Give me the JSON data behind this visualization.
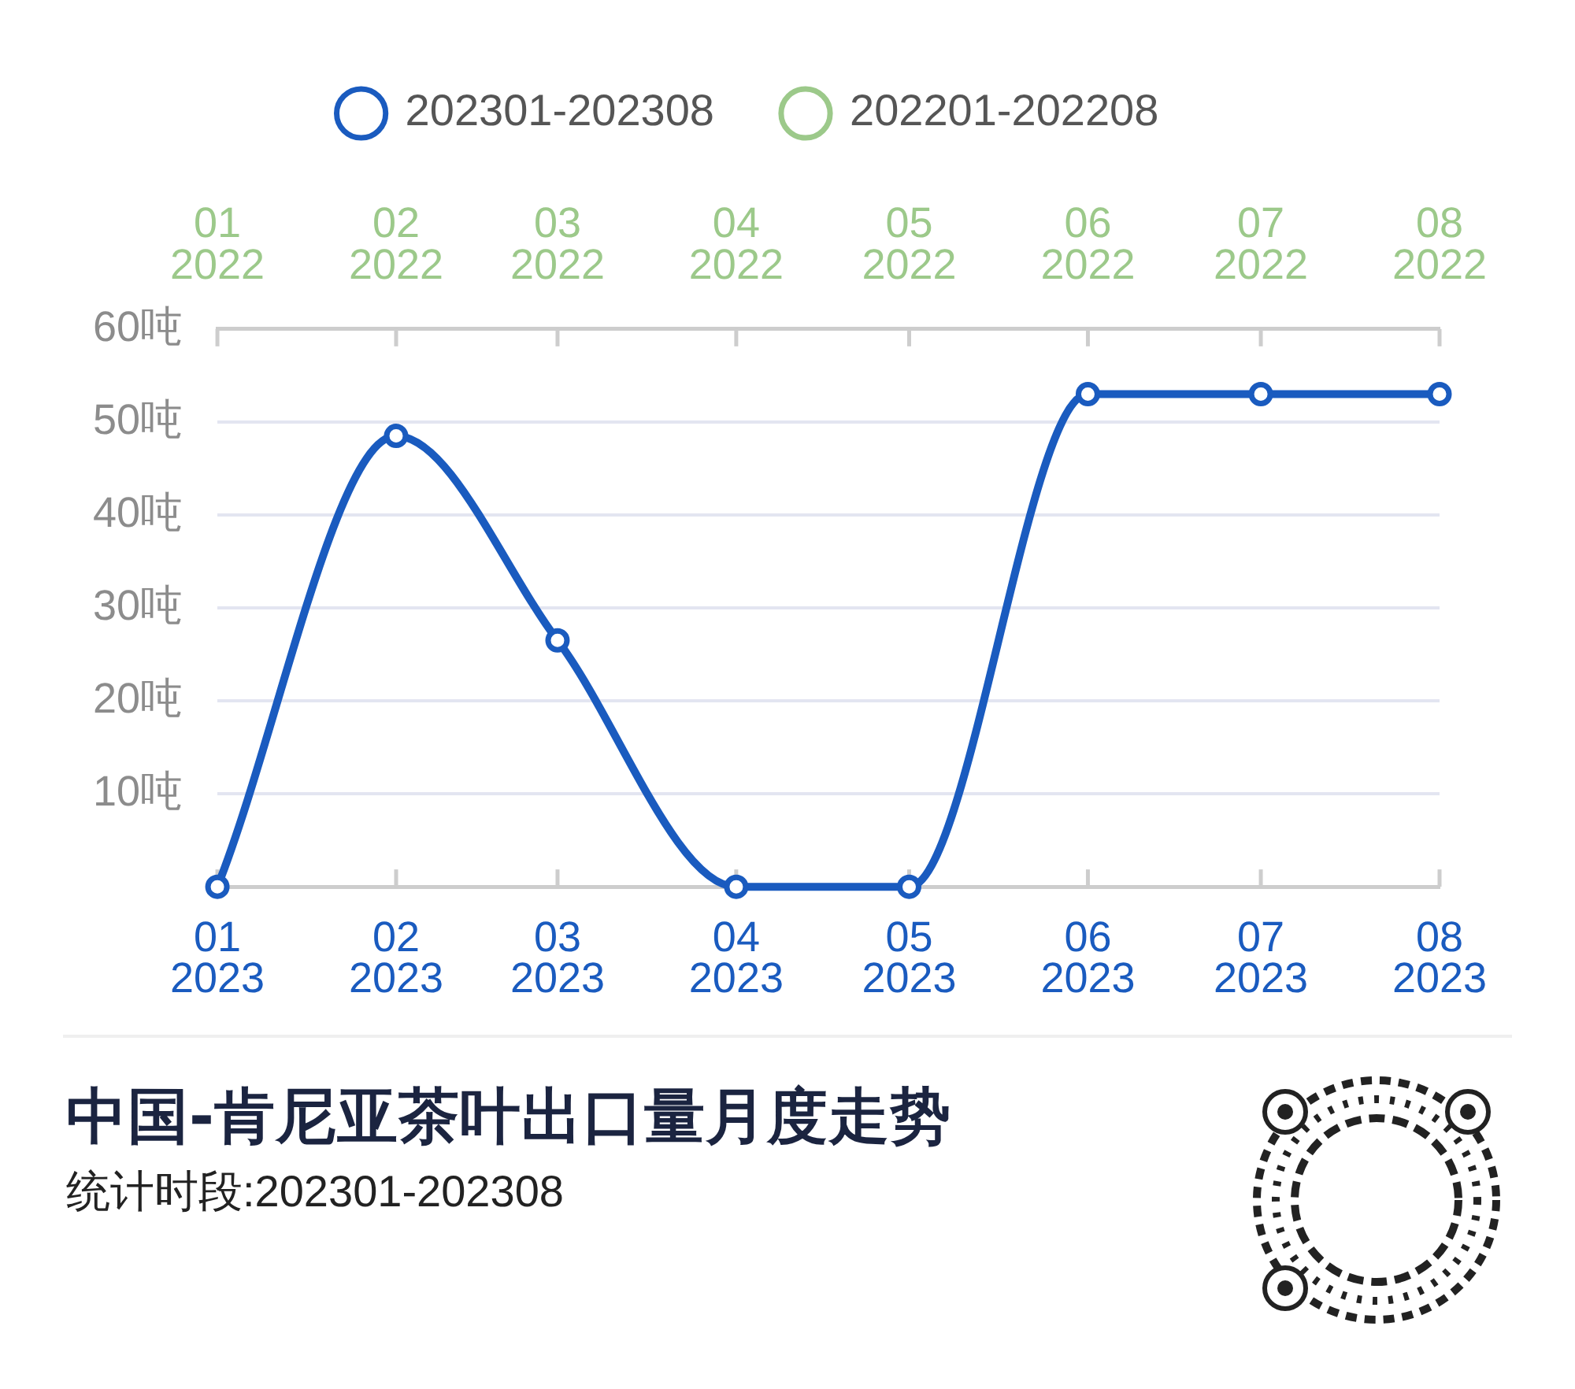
{
  "chart_data": {
    "type": "line",
    "title": "中国-肯尼亚茶叶出口量月度走势",
    "subtitle": "统计时段:202301-202308",
    "x": [
      "2023-01",
      "2023-02",
      "2023-03",
      "2023-04",
      "2023-05",
      "2023-06",
      "2023-07",
      "2023-08"
    ],
    "xlim": [
      "2023-01",
      "2023-08"
    ],
    "xticks": [
      {
        "value": "2023-01",
        "label": "01\n2023"
      },
      {
        "value": "2023-02",
        "label": "02\n2023"
      },
      {
        "value": "2023-03",
        "label": "03\n2023"
      },
      {
        "value": "2023-04",
        "label": "04\n2023"
      },
      {
        "value": "2023-05",
        "label": "05\n2023"
      },
      {
        "value": "2023-06",
        "label": "06\n2023"
      },
      {
        "value": "2023-07",
        "label": "07\n2023"
      },
      {
        "value": "2023-08",
        "label": "08\n2023"
      }
    ],
    "x2lim": [
      "2022-01",
      "2022-08"
    ],
    "x2ticks": [
      {
        "value": "2022-01",
        "label": "01\n2022"
      },
      {
        "value": "2022-02",
        "label": "02\n2022"
      },
      {
        "value": "2022-03",
        "label": "03\n2022"
      },
      {
        "value": "2022-04",
        "label": "04\n2022"
      },
      {
        "value": "2022-05",
        "label": "05\n2022"
      },
      {
        "value": "2022-06",
        "label": "06\n2022"
      },
      {
        "value": "2022-07",
        "label": "07\n2022"
      },
      {
        "value": "2022-08",
        "label": "08\n2022"
      }
    ],
    "ylim": [
      0,
      60
    ],
    "yticks": [
      {
        "value": 0,
        "label": null
      },
      {
        "value": 10,
        "label": "10吨"
      },
      {
        "value": 20,
        "label": "20吨"
      },
      {
        "value": 30,
        "label": "30吨"
      },
      {
        "value": 40,
        "label": "40吨"
      },
      {
        "value": 50,
        "label": "50吨"
      },
      {
        "value": 60,
        "label": "60吨"
      }
    ],
    "series": [
      {
        "name": "202301-202308",
        "color": "#1a5bbf",
        "values": [
          0,
          48.5,
          26.5,
          0,
          0,
          53,
          53,
          53
        ]
      },
      {
        "name": "202201-202208",
        "color": "#9cc98a",
        "values": [
          null,
          null,
          null,
          null,
          null,
          null,
          null,
          null
        ]
      }
    ],
    "grid": "y",
    "legend": "top",
    "marker": "circle",
    "line_style": "solid"
  }
}
